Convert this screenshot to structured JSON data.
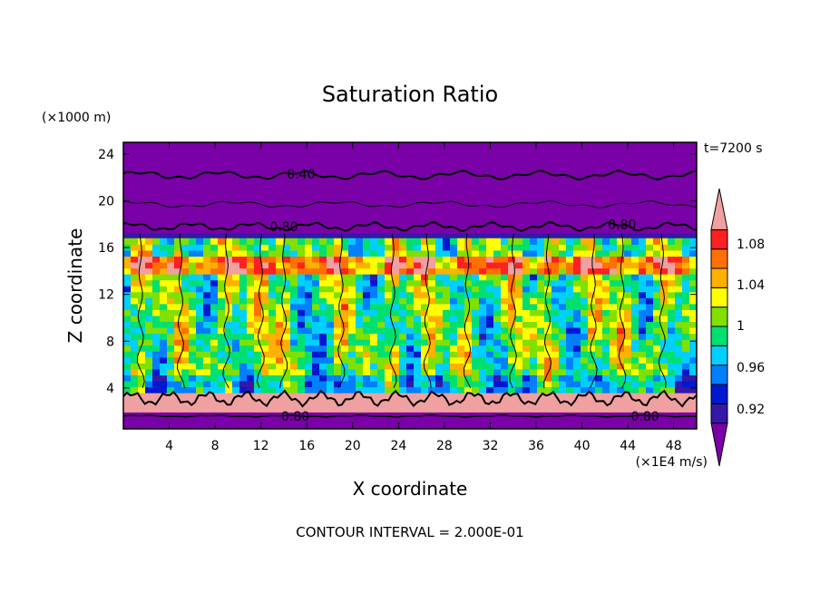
{
  "chart_data": {
    "type": "heatmap",
    "title": "Saturation Ratio",
    "xlabel": "X coordinate",
    "ylabel": "Z coordinate",
    "x_units": "(×1E4 m/s)",
    "y_units": "(×1000 m)",
    "time_label": "t=7200 s",
    "footer": "CONTOUR INTERVAL = 2.000E-01",
    "xlim": [
      0,
      50
    ],
    "ylim": [
      0.5,
      25
    ],
    "x_ticks": [
      4,
      8,
      12,
      16,
      20,
      24,
      28,
      32,
      36,
      40,
      44,
      48
    ],
    "y_ticks": [
      4,
      8,
      12,
      16,
      20,
      24
    ],
    "colorbar": {
      "labels": [
        "1.08",
        "1.04",
        "1",
        "0.96",
        "0.92"
      ],
      "label_values": [
        1.08,
        1.04,
        1.0,
        0.96,
        0.92
      ],
      "colors": [
        "#7a00a8",
        "#3418a8",
        "#0018d0",
        "#0080ff",
        "#00d0ff",
        "#00e070",
        "#80e000",
        "#ffff00",
        "#ffb000",
        "#ff7000",
        "#ff2020",
        "#f0a0a0"
      ]
    },
    "contour_labels": [
      {
        "text": "0.40",
        "x": 15.5,
        "z": 22.3
      },
      {
        "text": "0.80",
        "x": 14.0,
        "z": 17.8
      },
      {
        "text": "0.80",
        "x": 43.5,
        "z": 18.0
      },
      {
        "text": "0.80",
        "x": 15.0,
        "z": 1.6
      },
      {
        "text": "0.80",
        "x": 45.5,
        "z": 1.6
      }
    ],
    "background_colors": {
      "upper_band": "#7a00a8",
      "lower_band": "#7a00a8",
      "saturated_layer": "#f0a0a0"
    }
  }
}
